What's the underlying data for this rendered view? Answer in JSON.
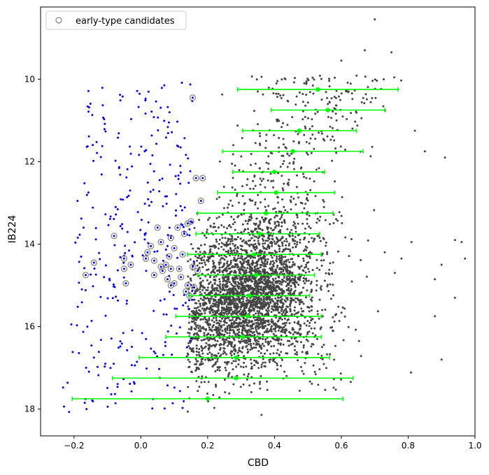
{
  "chart_data": {
    "type": "scatter",
    "xlabel": "CBD",
    "ylabel": "IB224",
    "xlim": [
      -0.3,
      1.0
    ],
    "ylim": [
      18.65,
      8.25
    ],
    "y_inverted": true,
    "grid": false,
    "legend_position": "top-left",
    "xticks": [
      -0.2,
      0.0,
      0.2,
      0.4,
      0.6,
      0.8,
      1.0
    ],
    "xtick_labels": [
      "−0.2",
      "0.0",
      "0.2",
      "0.4",
      "0.6",
      "0.8",
      "1.0"
    ],
    "yticks": [
      10,
      12,
      14,
      16,
      18
    ],
    "ytick_labels": [
      "10",
      "12",
      "14",
      "16",
      "18"
    ],
    "legend": [
      {
        "label": "early-type candidates",
        "marker": "open-circle",
        "color": "#808080"
      }
    ],
    "colors": {
      "all_points": "#444444",
      "blue_points": "#0000ee",
      "candidate_circle": "#808080",
      "binned_median": "#00ff00"
    },
    "binned_medians": [
      {
        "y": 10.25,
        "x": 0.53,
        "xlo": 0.29,
        "xhi": 0.77
      },
      {
        "y": 10.75,
        "x": 0.56,
        "xlo": 0.39,
        "xhi": 0.73
      },
      {
        "y": 11.25,
        "x": 0.475,
        "xlo": 0.305,
        "xhi": 0.645
      },
      {
        "y": 11.75,
        "x": 0.455,
        "xlo": 0.245,
        "xhi": 0.665
      },
      {
        "y": 12.25,
        "x": 0.4,
        "xlo": 0.275,
        "xhi": 0.55
      },
      {
        "y": 12.75,
        "x": 0.405,
        "xlo": 0.23,
        "xhi": 0.58
      },
      {
        "y": 13.25,
        "x": 0.375,
        "xlo": 0.17,
        "xhi": 0.575
      },
      {
        "y": 13.75,
        "x": 0.355,
        "xlo": 0.165,
        "xhi": 0.535
      },
      {
        "y": 14.25,
        "x": 0.34,
        "xlo": 0.14,
        "xhi": 0.54
      },
      {
        "y": 14.75,
        "x": 0.345,
        "xlo": 0.17,
        "xhi": 0.52
      },
      {
        "y": 15.25,
        "x": 0.325,
        "xlo": 0.145,
        "xhi": 0.505
      },
      {
        "y": 15.75,
        "x": 0.32,
        "xlo": 0.105,
        "xhi": 0.54
      },
      {
        "y": 16.25,
        "x": 0.305,
        "xlo": 0.075,
        "xhi": 0.54
      },
      {
        "y": 16.75,
        "x": 0.285,
        "xlo": -0.005,
        "xhi": 0.565
      },
      {
        "y": 17.25,
        "x": 0.285,
        "xlo": -0.085,
        "xhi": 0.635
      },
      {
        "y": 17.75,
        "x": 0.2,
        "xlo": -0.205,
        "xhi": 0.605
      }
    ],
    "early_type_candidates": [
      [
        0.155,
        10.45
      ],
      [
        0.185,
        12.4
      ],
      [
        0.165,
        12.4
      ],
      [
        0.18,
        12.95
      ],
      [
        -0.08,
        13.8
      ],
      [
        0.05,
        13.6
      ],
      [
        0.11,
        13.6
      ],
      [
        0.14,
        13.5
      ],
      [
        0.15,
        13.45
      ],
      [
        0.13,
        13.75
      ],
      [
        0.09,
        13.85
      ],
      [
        0.06,
        13.95
      ],
      [
        0.03,
        14.05
      ],
      [
        0.1,
        14.1
      ],
      [
        0.125,
        14.25
      ],
      [
        0.085,
        14.3
      ],
      [
        0.04,
        14.4
      ],
      [
        0.015,
        14.35
      ],
      [
        -0.05,
        14.35
      ],
      [
        -0.14,
        14.45
      ],
      [
        0.06,
        14.55
      ],
      [
        0.09,
        14.6
      ],
      [
        0.115,
        14.6
      ],
      [
        0.155,
        14.55
      ],
      [
        0.17,
        14.65
      ],
      [
        -0.05,
        14.6
      ],
      [
        -0.03,
        14.5
      ],
      [
        0.12,
        14.8
      ],
      [
        0.08,
        14.85
      ],
      [
        0.1,
        14.95
      ],
      [
        0.14,
        15.0
      ],
      [
        -0.045,
        14.95
      ],
      [
        -0.165,
        14.75
      ],
      [
        0.04,
        14.75
      ],
      [
        0.065,
        14.65
      ],
      [
        0.135,
        15.15
      ],
      [
        0.145,
        15.25
      ],
      [
        0.16,
        15.05
      ],
      [
        0.09,
        15.0
      ],
      [
        0.02,
        14.2
      ],
      [
        0.075,
        14.5
      ]
    ]
  }
}
